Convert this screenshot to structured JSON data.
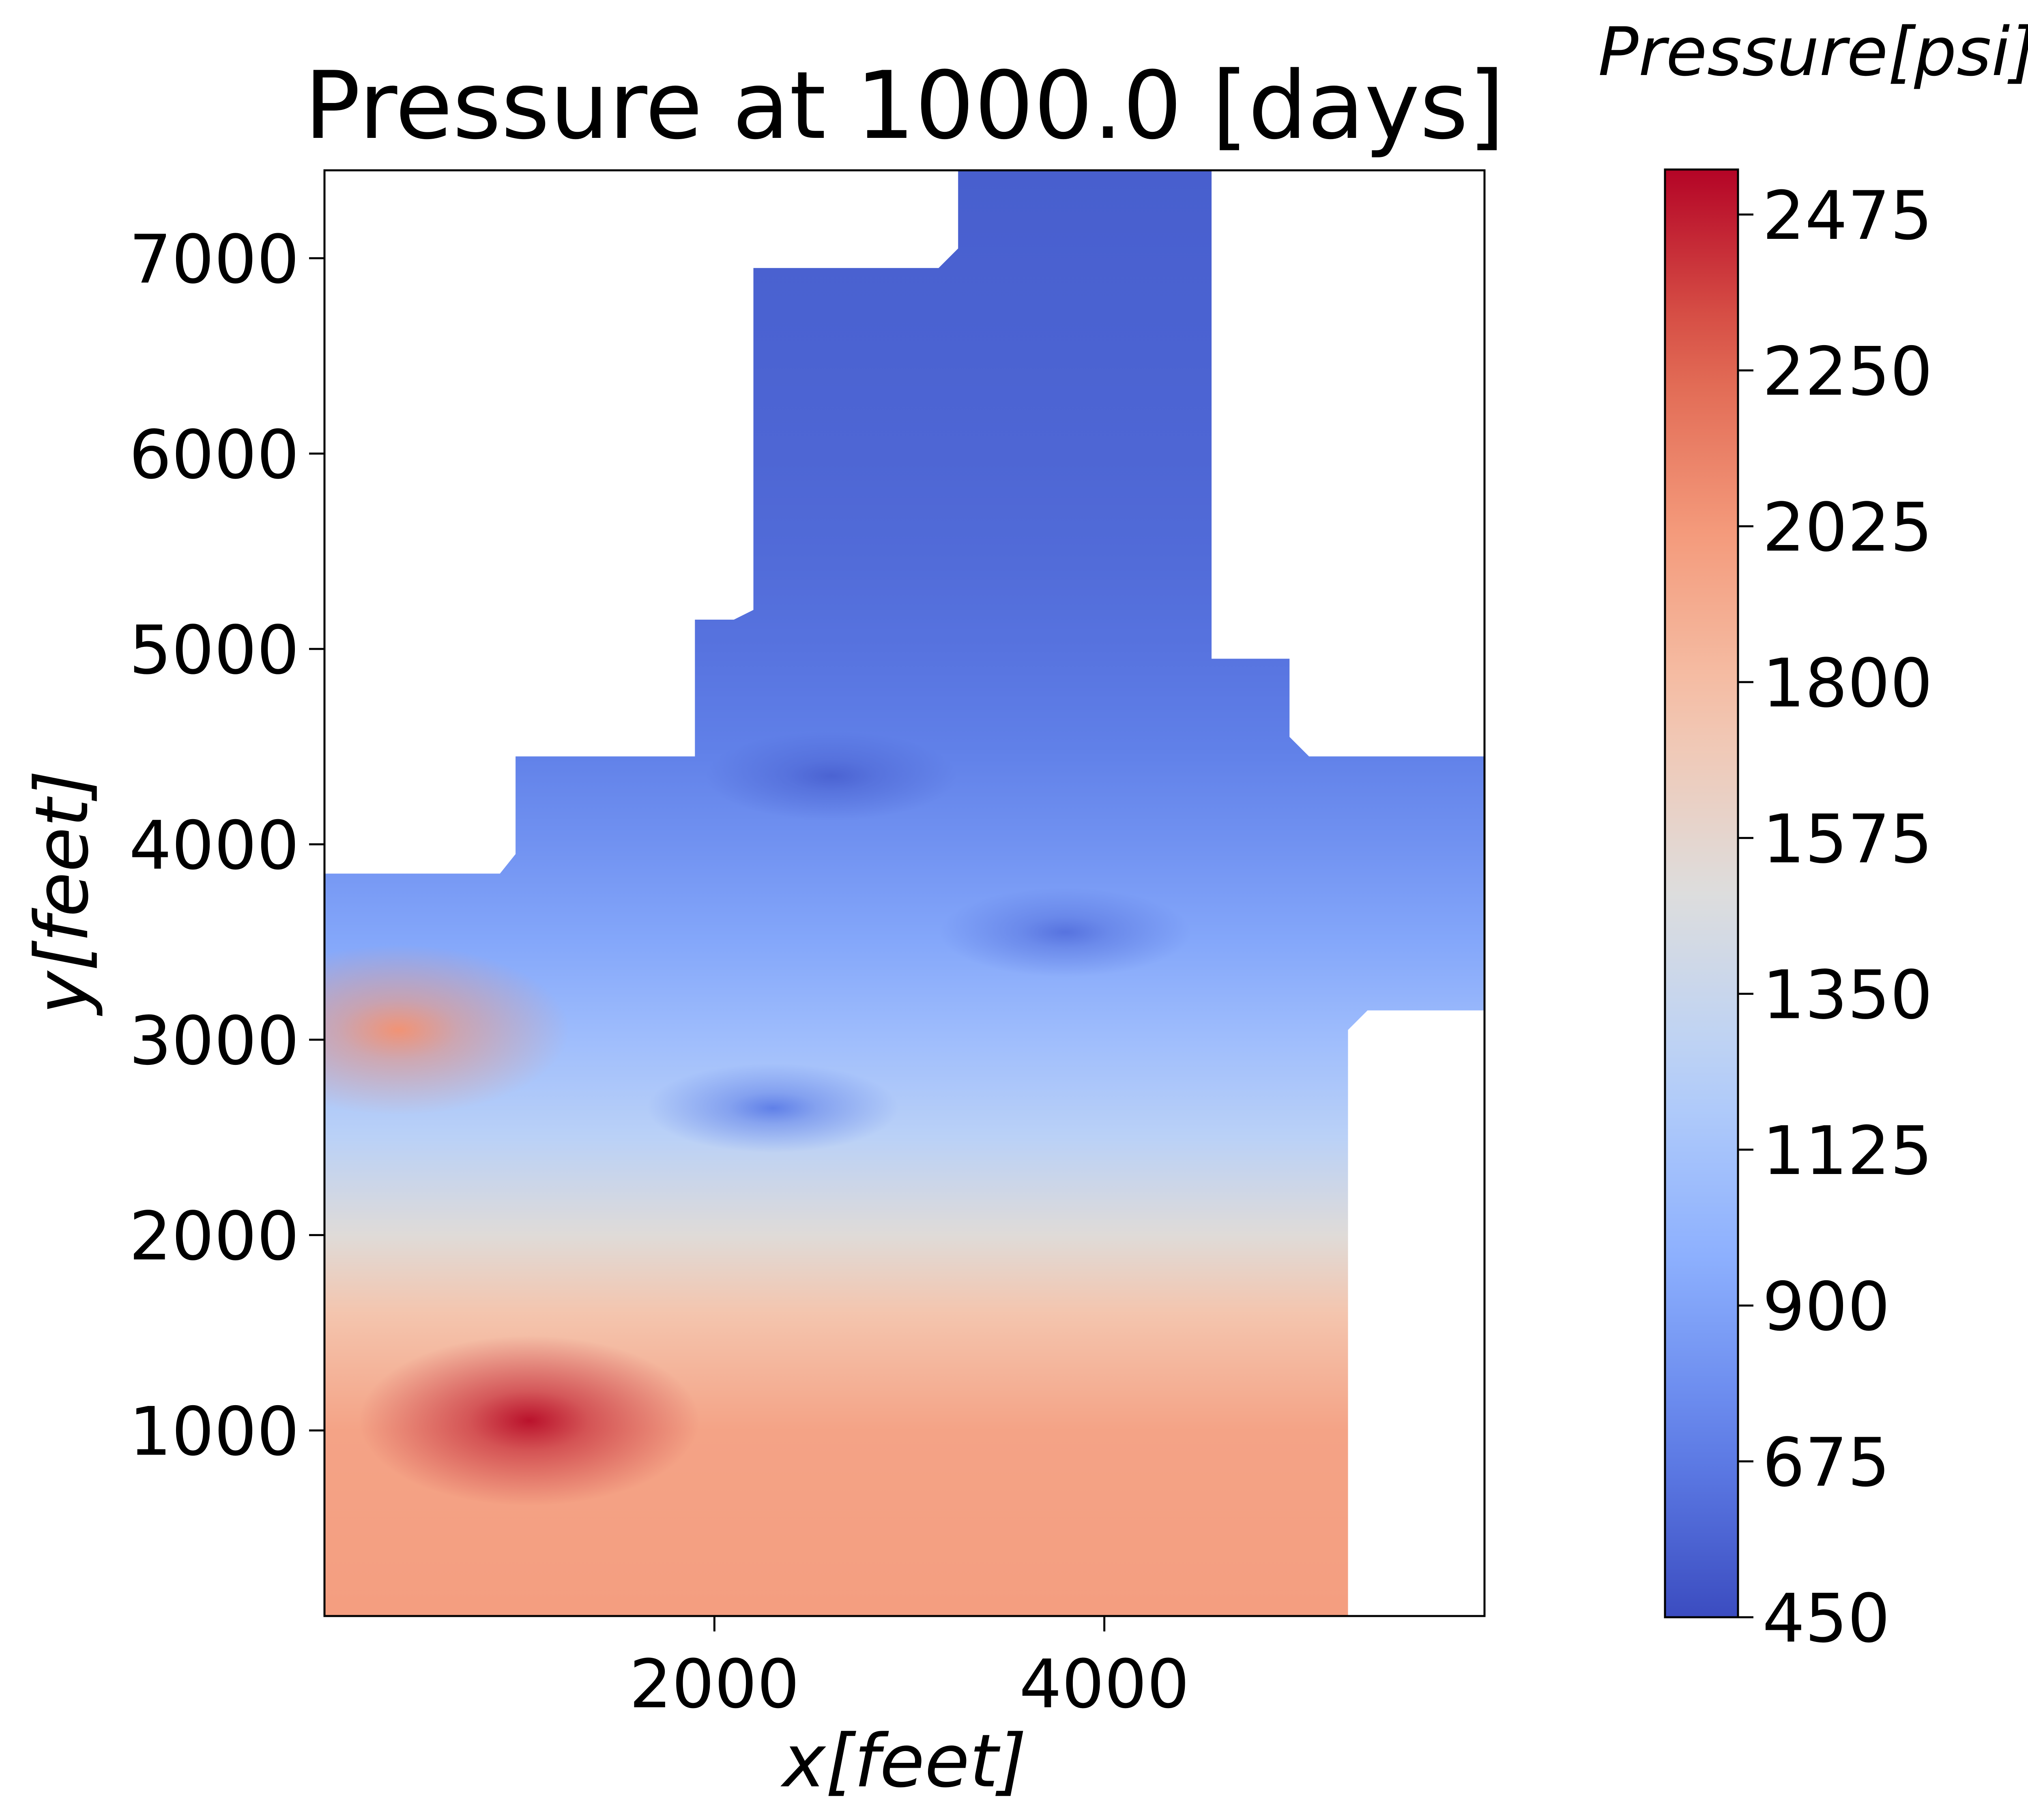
{
  "chart_data": {
    "type": "heatmap",
    "title": "Pressure at 1000.0 [days]",
    "xlabel": "x[feet]",
    "ylabel": "y[feet]",
    "xlim": [
      0,
      5950
    ],
    "ylim": [
      50,
      7450
    ],
    "xticks": [
      2000,
      4000
    ],
    "yticks": [
      1000,
      2000,
      3000,
      4000,
      5000,
      6000,
      7000
    ],
    "colorbar": {
      "label": "Pressure[psi]",
      "colormap": "coolwarm",
      "range": [
        450,
        2540
      ],
      "ticks": [
        450,
        675,
        900,
        1125,
        1350,
        1575,
        1800,
        2025,
        2250,
        2475
      ]
    },
    "domain_outline": [
      [
        0,
        50
      ],
      [
        5250,
        50
      ],
      [
        5250,
        3050
      ],
      [
        5350,
        3150
      ],
      [
        5950,
        3150
      ],
      [
        5950,
        4450
      ],
      [
        5050,
        4450
      ],
      [
        4950,
        4550
      ],
      [
        4950,
        4950
      ],
      [
        4550,
        4950
      ],
      [
        4550,
        5050
      ],
      [
        4550,
        7450
      ],
      [
        3250,
        7450
      ],
      [
        3250,
        7050
      ],
      [
        3150,
        6950
      ],
      [
        2200,
        6950
      ],
      [
        2200,
        5200
      ],
      [
        2100,
        5150
      ],
      [
        1900,
        5150
      ],
      [
        1900,
        4450
      ],
      [
        980,
        4450
      ],
      [
        980,
        3950
      ],
      [
        900,
        3850
      ],
      [
        0,
        3850
      ]
    ],
    "field": {
      "background": [
        {
          "y": 50,
          "pressure": 1990
        },
        {
          "y": 1000,
          "pressure": 1960
        },
        {
          "y": 1600,
          "pressure": 1750
        },
        {
          "y": 2000,
          "pressure": 1520
        },
        {
          "y": 2500,
          "pressure": 1250
        },
        {
          "y": 3000,
          "pressure": 1080
        },
        {
          "y": 3500,
          "pressure": 920
        },
        {
          "y": 4000,
          "pressure": 800
        },
        {
          "y": 4500,
          "pressure": 700
        },
        {
          "y": 5000,
          "pressure": 640
        },
        {
          "y": 5500,
          "pressure": 600
        },
        {
          "y": 6000,
          "pressure": 575
        },
        {
          "y": 6500,
          "pressure": 560
        },
        {
          "y": 7450,
          "pressure": 540
        }
      ],
      "wells": [
        {
          "x": 1050,
          "y": 1050,
          "pressure": 2500,
          "type": "injector"
        },
        {
          "x": 380,
          "y": 3050,
          "pressure": 2050,
          "type": "injector"
        },
        {
          "x": 2300,
          "y": 2650,
          "pressure": 700,
          "type": "producer"
        },
        {
          "x": 2600,
          "y": 4350,
          "pressure": 560,
          "type": "producer"
        },
        {
          "x": 3800,
          "y": 3550,
          "pressure": 640,
          "type": "producer"
        }
      ]
    }
  }
}
